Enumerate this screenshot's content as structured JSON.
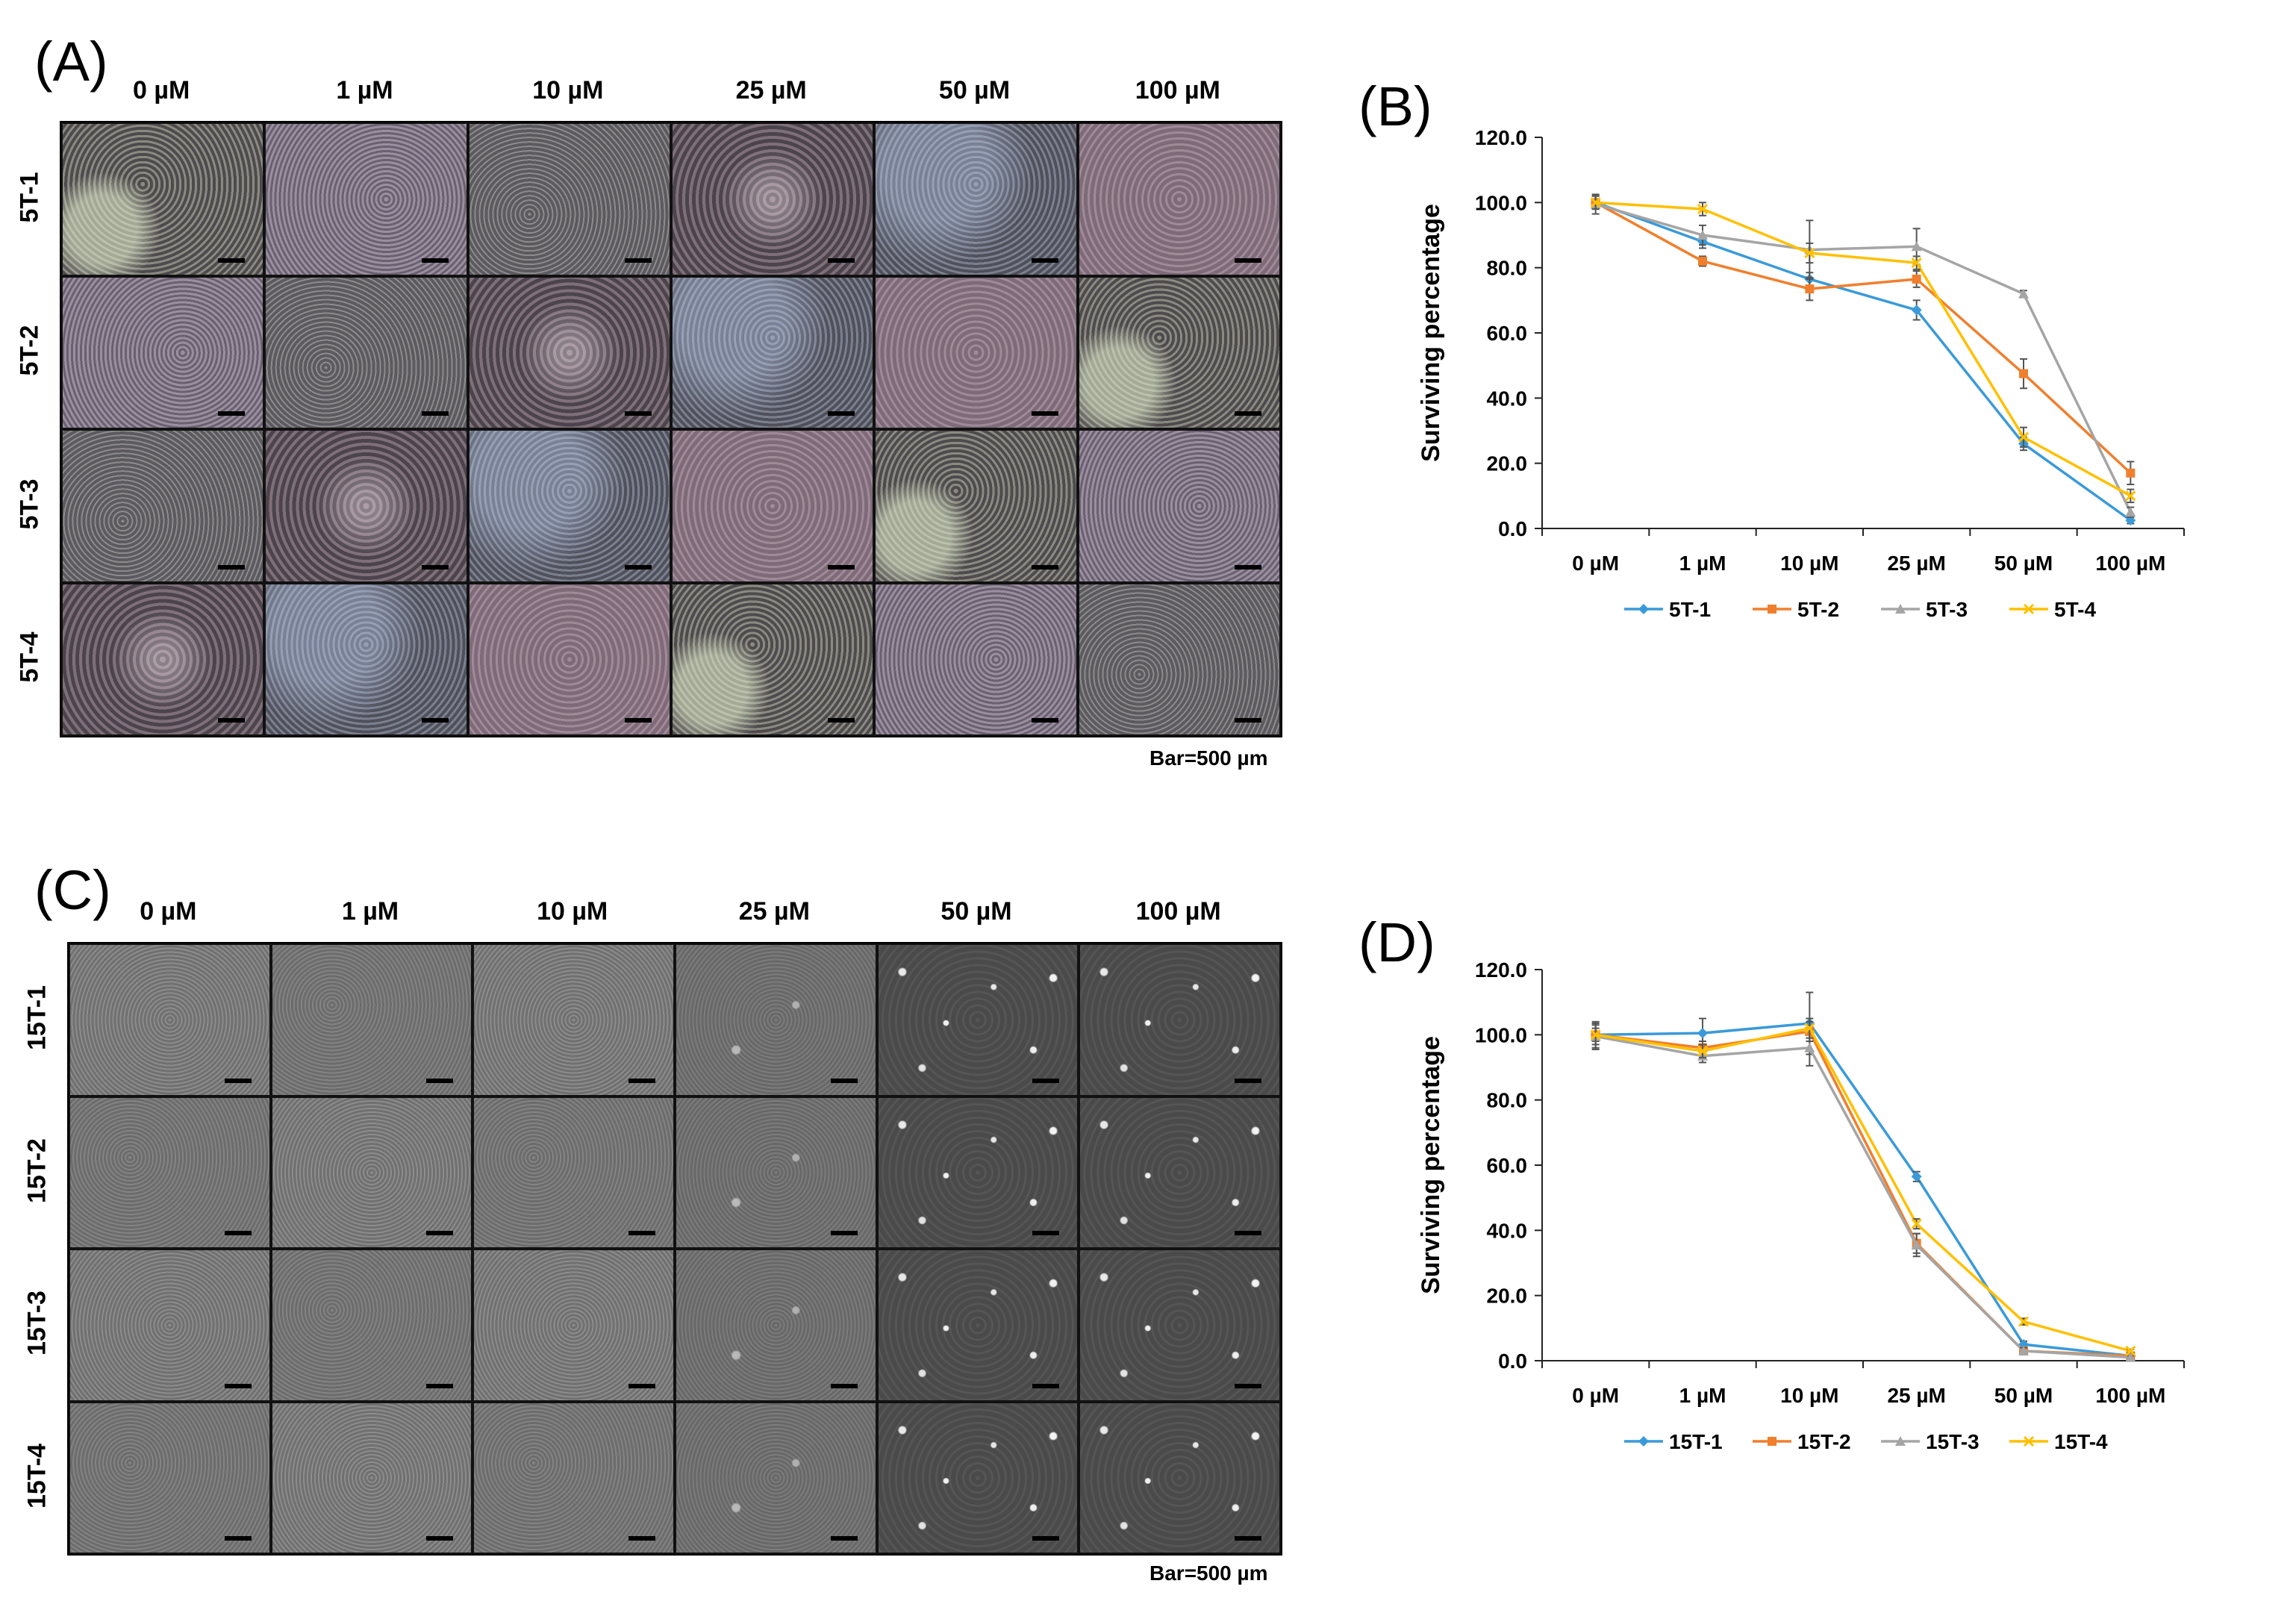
{
  "panels": {
    "a": {
      "letter": "(A)",
      "concentrations": [
        "0 µM",
        "1 µM",
        "10 µM",
        "25 µM",
        "50 µM",
        "100 µM"
      ],
      "rows": [
        "5T-1",
        "5T-2",
        "5T-3",
        "5T-4"
      ],
      "bar_note": "Bar=500 µm"
    },
    "b": {
      "letter": "(B)"
    },
    "c": {
      "letter": "(C)",
      "concentrations": [
        "0 µM",
        "1 µM",
        "10 µM",
        "25 µM",
        "50 µM",
        "100 µM"
      ],
      "rows": [
        "15T-1",
        "15T-2",
        "15T-3",
        "15T-4"
      ],
      "bar_note": "Bar=500 µm"
    },
    "d": {
      "letter": "(D)"
    }
  },
  "chart_data": [
    {
      "id": "B",
      "type": "line",
      "title": "",
      "xlabel": "",
      "ylabel": "Surviving percentage",
      "categories": [
        "0 µM",
        "1 µM",
        "10 µM",
        "25 µM",
        "50 µM",
        "100 µM"
      ],
      "ylim": [
        0,
        120
      ],
      "yticks": [
        "0.0",
        "20.0",
        "40.0",
        "60.0",
        "80.0",
        "100.0",
        "120.0"
      ],
      "legend_position": "bottom",
      "series": [
        {
          "name": "5T-1",
          "color": "#3a9ad9",
          "marker": "diamond",
          "values": [
            100,
            88,
            76.5,
            67,
            26,
            2.5
          ],
          "errors": [
            2,
            2,
            2,
            3,
            2,
            1
          ]
        },
        {
          "name": "5T-2",
          "color": "#f07f2d",
          "marker": "square",
          "values": [
            100,
            82,
            73.5,
            76.5,
            47.5,
            17
          ],
          "errors": [
            2,
            1.5,
            3.5,
            2.5,
            4.5,
            3.5
          ]
        },
        {
          "name": "5T-3",
          "color": "#a5a5a5",
          "marker": "triangle",
          "values": [
            99.5,
            90,
            85.5,
            86.5,
            72,
            5
          ],
          "errors": [
            3,
            3,
            9,
            5.5,
            1,
            1.5
          ]
        },
        {
          "name": "5T-4",
          "color": "#ffc000",
          "marker": "x",
          "values": [
            100,
            98,
            84.5,
            81.5,
            28,
            10
          ],
          "errors": [
            2,
            2,
            3,
            2,
            3,
            2
          ]
        }
      ]
    },
    {
      "id": "D",
      "type": "line",
      "title": "",
      "xlabel": "",
      "ylabel": "Surviving percentage",
      "categories": [
        "0 µM",
        "1 µM",
        "10 µM",
        "25 µM",
        "50 µM",
        "100 µM"
      ],
      "ylim": [
        0,
        120
      ],
      "yticks": [
        "0.0",
        "20.0",
        "40.0",
        "60.0",
        "80.0",
        "100.0",
        "120.0"
      ],
      "legend_position": "bottom",
      "series": [
        {
          "name": "15T-1",
          "color": "#3a9ad9",
          "marker": "diamond",
          "values": [
            100,
            100.5,
            103.5,
            56.5,
            5,
            1.5
          ],
          "errors": [
            2,
            4.5,
            9.5,
            1.5,
            1,
            0.5
          ]
        },
        {
          "name": "15T-2",
          "color": "#f07f2d",
          "marker": "square",
          "values": [
            100,
            96,
            101,
            36,
            3,
            1.5
          ],
          "errors": [
            4,
            2,
            3,
            3,
            1,
            0.5
          ]
        },
        {
          "name": "15T-3",
          "color": "#a5a5a5",
          "marker": "triangle",
          "values": [
            99.5,
            93.5,
            96,
            35.5,
            3,
            1
          ],
          "errors": [
            4,
            2,
            5.5,
            3.5,
            1,
            0.5
          ]
        },
        {
          "name": "15T-4",
          "color": "#ffc000",
          "marker": "x",
          "values": [
            100,
            95,
            102,
            42,
            12,
            3
          ],
          "errors": [
            3,
            2,
            3,
            1.5,
            1,
            0.5
          ]
        }
      ]
    }
  ]
}
